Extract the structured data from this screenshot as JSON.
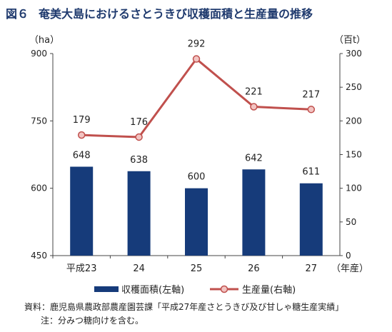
{
  "title": {
    "figure": "図６",
    "text": "奄美大島におけるさとうきび収穫面積と生産量の推移"
  },
  "chart_data": {
    "type": "bar+line",
    "categories": [
      "平成23",
      "24",
      "25",
      "26",
      "27"
    ],
    "x_unit": "（年産）",
    "series": [
      {
        "name": "収穫面積(左軸)",
        "type": "bar",
        "axis": "left",
        "values": [
          648,
          638,
          600,
          642,
          611
        ],
        "color": "#163b7a"
      },
      {
        "name": "生産量(右軸)",
        "type": "line",
        "axis": "right",
        "values": [
          179,
          176,
          292,
          221,
          217
        ],
        "color": "#c0504d",
        "marker_fill": "#f2c4c2"
      }
    ],
    "y_left": {
      "unit": "（ha）",
      "min": 450,
      "max": 900,
      "ticks": [
        450,
        600,
        750,
        900
      ]
    },
    "y_right": {
      "unit": "（百t）",
      "min": 0,
      "max": 300,
      "ticks": [
        0,
        50,
        100,
        150,
        200,
        250,
        300
      ]
    },
    "grid": false,
    "legend": "bottom"
  },
  "notes": {
    "source": "資料：鹿児島県農政部農産園芸課「平成27年産さとうきび及び甘しゃ糖生産実績」",
    "note": "注：分みつ糖向けを含む。"
  }
}
